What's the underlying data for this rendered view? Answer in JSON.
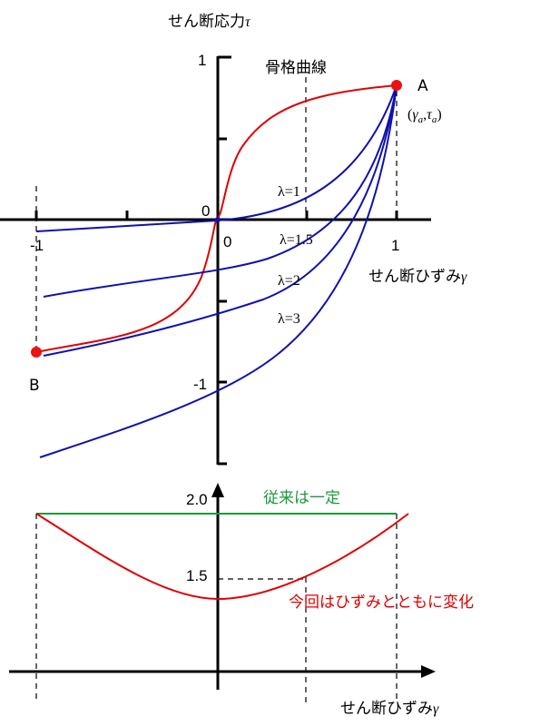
{
  "top": {
    "y_axis_label": "せん断応力",
    "y_axis_symbol": "τ",
    "x_axis_label": "せん断ひずみ",
    "x_axis_symbol": "γ",
    "skeleton_label": "骨格曲線",
    "origin_label": "0",
    "x_zero_label": "0",
    "x_ticks": {
      "neg_one": "-1",
      "pos_one": "1"
    },
    "y_ticks": {
      "pos_one": "1",
      "neg_one": "-1"
    },
    "point_a": {
      "label": "A",
      "open": "(",
      "gamma": "γ",
      "gamma_sub": "a",
      "comma": ",",
      "tau": "τ",
      "tau_sub": "a",
      "close": ")"
    },
    "point_b": {
      "label": "B"
    },
    "lambda_labels": [
      "λ=1",
      "λ=1.5",
      "λ=2",
      "λ=3"
    ],
    "colors": {
      "skeleton": "#e00000",
      "lambda": "#1010b0",
      "axis": "#000000",
      "point": "#ee1111"
    }
  },
  "bottom": {
    "y_tick_2": "2.0",
    "y_tick_15": "1.5",
    "constant_label": "従来は一定",
    "varying_label": "今回はひずみとともに変化",
    "x_axis_label": "せん断ひずみ",
    "x_axis_symbol": "γ",
    "colors": {
      "constant": "#1a9a3a",
      "varying": "#e00000"
    }
  }
}
